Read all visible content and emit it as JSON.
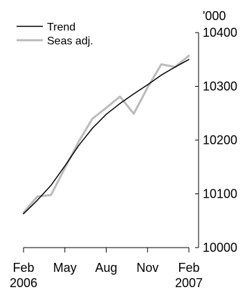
{
  "chart_data": {
    "type": "line",
    "unit_label": "'000",
    "x_ticks": [
      {
        "line1": "Feb",
        "line2": "2006",
        "index": 0
      },
      {
        "line1": "May",
        "line2": "",
        "index": 3
      },
      {
        "line1": "Aug",
        "line2": "",
        "index": 6
      },
      {
        "line1": "Nov",
        "line2": "",
        "index": 9
      },
      {
        "line1": "Feb",
        "line2": "2007",
        "index": 12
      }
    ],
    "y_ticks": [
      10000,
      10100,
      10200,
      10300,
      10400
    ],
    "ylim": [
      10000,
      10400
    ],
    "x_months": [
      "Feb 2006",
      "Mar 2006",
      "Apr 2006",
      "May 2006",
      "Jun 2006",
      "Jul 2006",
      "Aug 2006",
      "Sep 2006",
      "Oct 2006",
      "Nov 2006",
      "Dec 2006",
      "Jan 2007",
      "Feb 2007"
    ],
    "series": [
      {
        "name": "Trend",
        "color": "#000000",
        "values": [
          10063,
          10088,
          10116,
          10152,
          10190,
          10222,
          10248,
          10268,
          10286,
          10303,
          10321,
          10336,
          10350
        ]
      },
      {
        "name": "Seas adj.",
        "color": "#bbbbbb",
        "values": [
          10065,
          10095,
          10098,
          10148,
          10197,
          10240,
          10260,
          10281,
          10249,
          10298,
          10341,
          10336,
          10357
        ]
      }
    ],
    "legend_position": "top-left",
    "grid": false
  }
}
